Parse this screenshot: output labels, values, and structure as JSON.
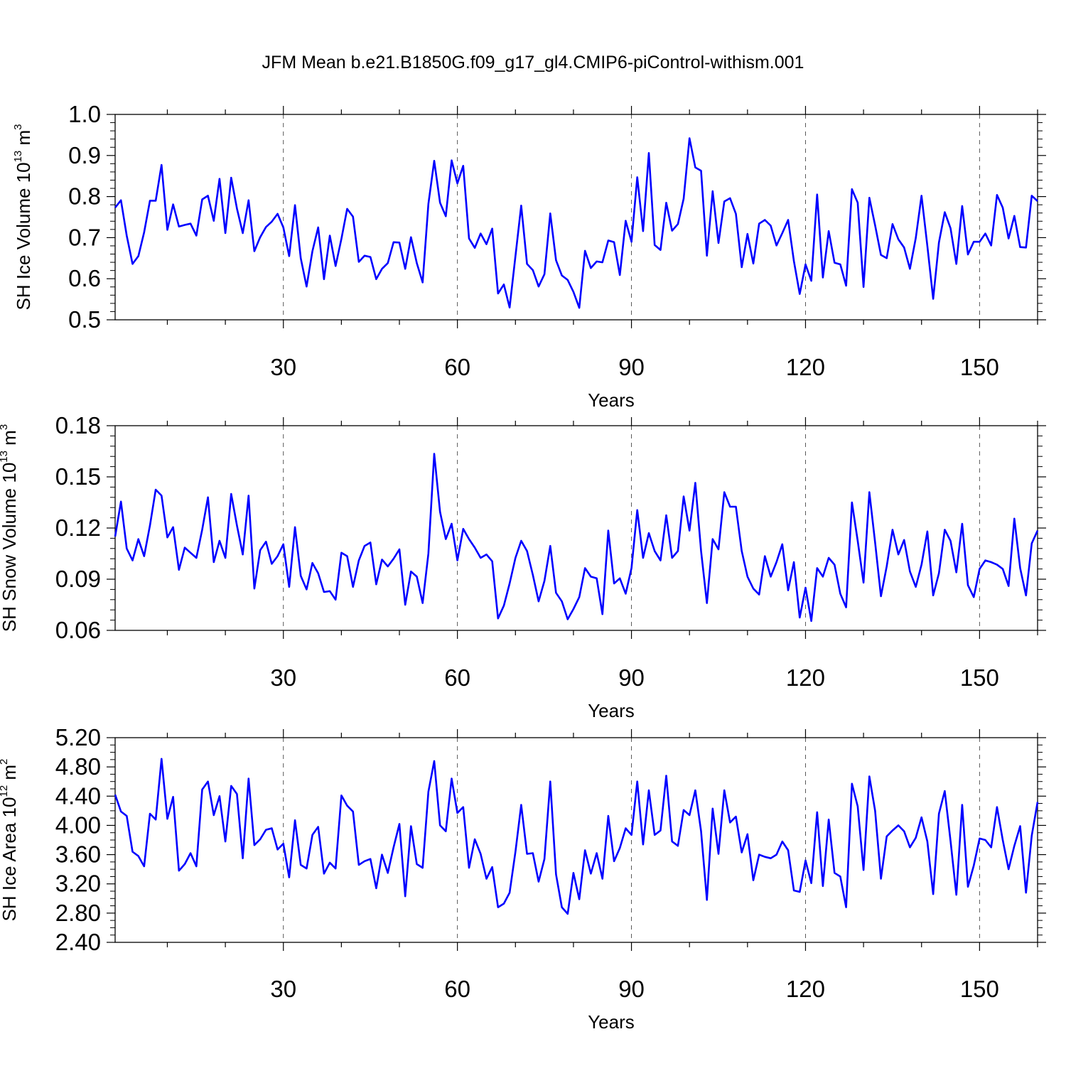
{
  "title": "JFM Mean b.e21.B1850G.f09_g17_gl4.CMIP6-piControl-withism.001",
  "colors": {
    "series": "#0000ff",
    "axis": "#000000",
    "grid": "#555555"
  },
  "chart_data": [
    {
      "type": "line",
      "ylabel": {
        "main": "SH Ice Volume 10",
        "exp": "13",
        "unit": " m",
        "unit_exp": "3"
      },
      "xlabel": "Years",
      "xlim": [
        1,
        160
      ],
      "ylim": [
        0.5,
        1.0
      ],
      "yticks": [
        "0.5",
        "0.6",
        "0.7",
        "0.8",
        "0.9",
        "1.0"
      ],
      "xticks": [
        "30",
        "60",
        "90",
        "120",
        "150"
      ],
      "grid_x": [
        30,
        60,
        90,
        120,
        150
      ],
      "series": [
        {
          "name": "SH Ice Volume",
          "values": [
            0.773,
            0.791,
            0.705,
            0.636,
            0.655,
            0.713,
            0.79,
            0.79,
            0.877,
            0.719,
            0.781,
            0.727,
            0.731,
            0.734,
            0.705,
            0.793,
            0.802,
            0.741,
            0.843,
            0.711,
            0.846,
            0.771,
            0.711,
            0.791,
            0.667,
            0.701,
            0.726,
            0.739,
            0.758,
            0.725,
            0.655,
            0.779,
            0.65,
            0.581,
            0.667,
            0.725,
            0.599,
            0.705,
            0.631,
            0.697,
            0.77,
            0.751,
            0.641,
            0.656,
            0.653,
            0.599,
            0.624,
            0.638,
            0.689,
            0.688,
            0.624,
            0.701,
            0.638,
            0.591,
            0.782,
            0.887,
            0.785,
            0.752,
            0.888,
            0.832,
            0.875,
            0.698,
            0.675,
            0.71,
            0.684,
            0.722,
            0.564,
            0.586,
            0.53,
            0.655,
            0.778,
            0.636,
            0.621,
            0.581,
            0.611,
            0.759,
            0.645,
            0.608,
            0.597,
            0.568,
            0.529,
            0.668,
            0.626,
            0.642,
            0.64,
            0.693,
            0.689,
            0.609,
            0.741,
            0.69,
            0.847,
            0.716,
            0.906,
            0.682,
            0.67,
            0.785,
            0.717,
            0.733,
            0.795,
            0.942,
            0.871,
            0.863,
            0.656,
            0.813,
            0.687,
            0.788,
            0.796,
            0.758,
            0.628,
            0.709,
            0.637,
            0.734,
            0.743,
            0.729,
            0.681,
            0.711,
            0.743,
            0.643,
            0.563,
            0.635,
            0.595,
            0.805,
            0.603,
            0.716,
            0.639,
            0.635,
            0.583,
            0.818,
            0.785,
            0.58,
            0.797,
            0.73,
            0.658,
            0.65,
            0.733,
            0.696,
            0.676,
            0.624,
            0.699,
            0.802,
            0.68,
            0.551,
            0.688,
            0.762,
            0.723,
            0.636,
            0.777,
            0.659,
            0.69,
            0.69,
            0.71,
            0.681,
            0.804,
            0.773,
            0.698,
            0.753,
            0.677,
            0.676,
            0.802,
            0.789
          ]
        }
      ]
    },
    {
      "type": "line",
      "ylabel": {
        "main": "SH Snow Volume 10",
        "exp": "13",
        "unit": " m",
        "unit_exp": "3"
      },
      "xlabel": "Years",
      "xlim": [
        1,
        160
      ],
      "ylim": [
        0.06,
        0.18
      ],
      "yticks": [
        "0.06",
        "0.09",
        "0.12",
        "0.15",
        "0.18"
      ],
      "xticks": [
        "30",
        "60",
        "90",
        "120",
        "150"
      ],
      "grid_x": [
        30,
        60,
        90,
        120,
        150
      ],
      "series": [
        {
          "name": "SH Snow Volume",
          "values": [
            0.115,
            0.1355,
            0.108,
            0.101,
            0.1135,
            0.1035,
            0.1215,
            0.1425,
            0.139,
            0.1145,
            0.1205,
            0.0955,
            0.1085,
            0.1055,
            0.1025,
            0.119,
            0.138,
            0.1,
            0.1125,
            0.1025,
            0.14,
            0.1215,
            0.1045,
            0.139,
            0.0845,
            0.107,
            0.112,
            0.099,
            0.1035,
            0.1105,
            0.0855,
            0.1205,
            0.092,
            0.084,
            0.0995,
            0.0935,
            0.0825,
            0.083,
            0.078,
            0.1055,
            0.1035,
            0.0855,
            0.101,
            0.1095,
            0.1115,
            0.087,
            0.1015,
            0.0975,
            0.102,
            0.1075,
            0.075,
            0.0945,
            0.0915,
            0.076,
            0.105,
            0.1635,
            0.1295,
            0.1135,
            0.1225,
            0.101,
            0.1195,
            0.1135,
            0.1085,
            0.1025,
            0.1045,
            0.1005,
            0.067,
            0.0745,
            0.0875,
            0.1025,
            0.1125,
            0.1065,
            0.0925,
            0.077,
            0.089,
            0.1095,
            0.082,
            0.077,
            0.0665,
            0.0725,
            0.0795,
            0.0965,
            0.0915,
            0.0905,
            0.0695,
            0.1185,
            0.0875,
            0.0905,
            0.0815,
            0.0965,
            0.1305,
            0.1025,
            0.117,
            0.1065,
            0.101,
            0.1275,
            0.1025,
            0.1065,
            0.1385,
            0.1185,
            0.1465,
            0.1065,
            0.076,
            0.1135,
            0.1075,
            0.141,
            0.1325,
            0.1325,
            0.1065,
            0.0915,
            0.0845,
            0.081,
            0.1035,
            0.0915,
            0.1,
            0.1105,
            0.0835,
            0.1,
            0.0675,
            0.085,
            0.0655,
            0.0965,
            0.0915,
            0.1025,
            0.0985,
            0.0815,
            0.0735,
            0.135,
            0.1125,
            0.088,
            0.141,
            0.1115,
            0.08,
            0.0975,
            0.119,
            0.1045,
            0.113,
            0.0945,
            0.0855,
            0.0985,
            0.118,
            0.0805,
            0.0935,
            0.119,
            0.1125,
            0.094,
            0.1225,
            0.0865,
            0.0795,
            0.096,
            0.101,
            0.1,
            0.0985,
            0.096,
            0.086,
            0.1255,
            0.0965,
            0.0805,
            0.111,
            0.1185
          ]
        }
      ]
    },
    {
      "type": "line",
      "ylabel": {
        "main": "SH Ice Area 10",
        "exp": "12",
        "unit": " m",
        "unit_exp": "2"
      },
      "xlabel": "Years",
      "xlim": [
        1,
        160
      ],
      "ylim": [
        2.4,
        5.2
      ],
      "yticks": [
        "2.40",
        "2.80",
        "3.20",
        "3.60",
        "4.00",
        "4.40",
        "4.80",
        "5.20"
      ],
      "xticks": [
        "30",
        "60",
        "90",
        "120",
        "150"
      ],
      "grid_x": [
        30,
        60,
        90,
        120,
        150
      ],
      "series": [
        {
          "name": "SH Ice Area",
          "values": [
            4.42,
            4.19,
            4.13,
            3.64,
            3.58,
            3.44,
            4.16,
            4.08,
            4.91,
            4.09,
            4.39,
            3.38,
            3.47,
            3.62,
            3.44,
            4.49,
            4.6,
            4.14,
            4.4,
            3.78,
            4.54,
            4.43,
            3.55,
            4.64,
            3.73,
            3.81,
            3.94,
            3.96,
            3.67,
            3.75,
            3.29,
            4.07,
            3.46,
            3.41,
            3.87,
            3.98,
            3.34,
            3.49,
            3.41,
            4.41,
            4.27,
            4.19,
            3.46,
            3.51,
            3.54,
            3.14,
            3.6,
            3.35,
            3.7,
            4.02,
            3.03,
            3.99,
            3.47,
            3.42,
            4.46,
            4.88,
            4.0,
            3.92,
            4.64,
            4.17,
            4.25,
            3.42,
            3.81,
            3.61,
            3.27,
            3.43,
            2.88,
            2.93,
            3.08,
            3.64,
            4.28,
            3.61,
            3.62,
            3.23,
            3.54,
            4.6,
            3.33,
            2.88,
            2.79,
            3.35,
            2.99,
            3.66,
            3.34,
            3.62,
            3.27,
            4.13,
            3.51,
            3.69,
            3.96,
            3.87,
            4.6,
            3.74,
            4.48,
            3.87,
            3.93,
            4.68,
            3.78,
            3.72,
            4.21,
            4.14,
            4.48,
            3.92,
            2.98,
            4.23,
            3.61,
            4.48,
            4.04,
            4.12,
            3.63,
            3.88,
            3.25,
            3.6,
            3.57,
            3.55,
            3.6,
            3.78,
            3.66,
            3.11,
            3.09,
            3.52,
            3.21,
            4.18,
            3.17,
            4.08,
            3.35,
            3.3,
            2.88,
            4.57,
            4.26,
            3.39,
            4.67,
            4.2,
            3.27,
            3.85,
            3.93,
            4.0,
            3.92,
            3.7,
            3.83,
            4.11,
            3.78,
            3.06,
            4.16,
            4.47,
            3.79,
            3.05,
            4.28,
            3.16,
            3.45,
            3.82,
            3.8,
            3.7,
            4.25,
            3.8,
            3.4,
            3.72,
            3.99,
            3.08,
            3.86,
            4.32
          ]
        }
      ]
    }
  ]
}
